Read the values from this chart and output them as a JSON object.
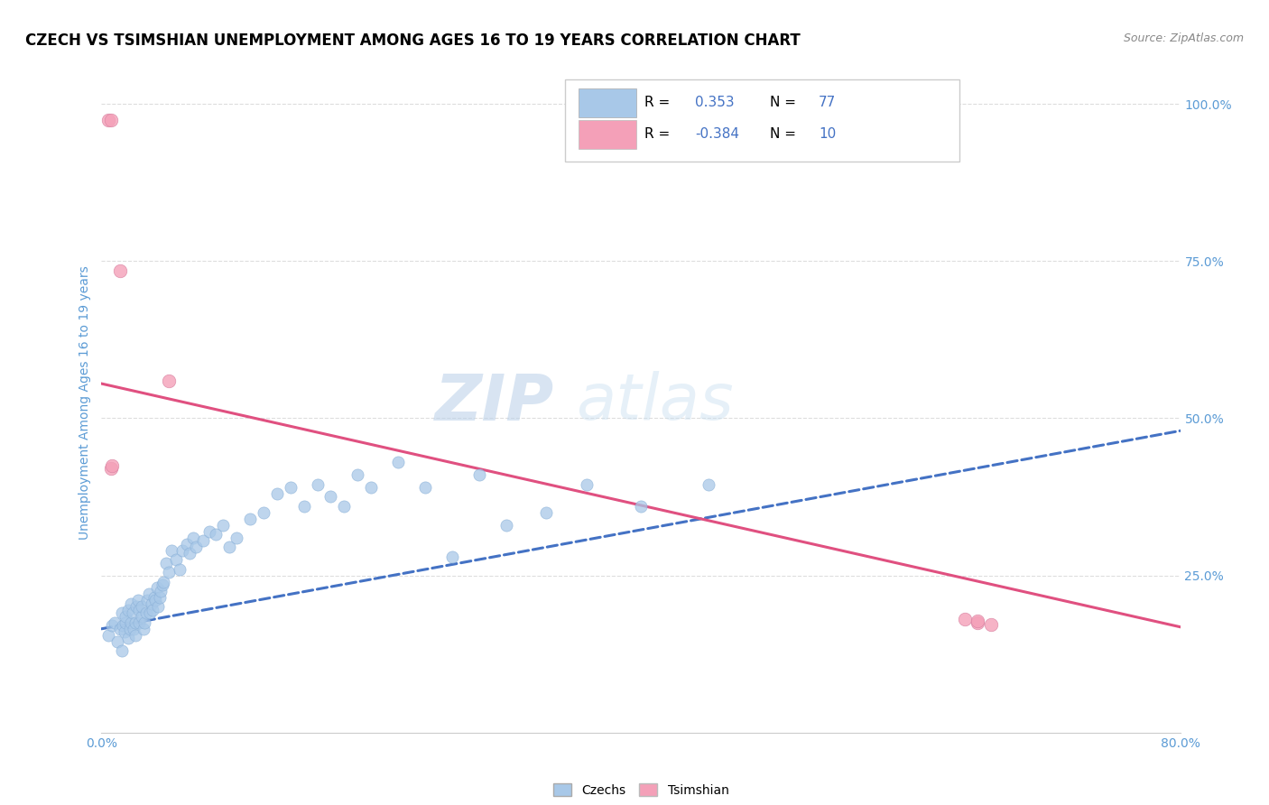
{
  "title": "CZECH VS TSIMSHIAN UNEMPLOYMENT AMONG AGES 16 TO 19 YEARS CORRELATION CHART",
  "source_text": "Source: ZipAtlas.com",
  "ylabel": "Unemployment Among Ages 16 to 19 years",
  "xlim": [
    0.0,
    0.8
  ],
  "ylim": [
    0.0,
    1.05
  ],
  "y_tick_labels": [
    "25.0%",
    "50.0%",
    "75.0%",
    "100.0%"
  ],
  "y_tick_vals": [
    0.25,
    0.5,
    0.75,
    1.0
  ],
  "blue_color": "#a8c8e8",
  "pink_color": "#f4a0b8",
  "blue_line_color": "#4472c4",
  "pink_line_color": "#e05080",
  "watermark_zip": "ZIP",
  "watermark_atlas": "atlas",
  "czechs_x": [
    0.005,
    0.008,
    0.01,
    0.012,
    0.014,
    0.015,
    0.015,
    0.016,
    0.017,
    0.018,
    0.018,
    0.02,
    0.02,
    0.021,
    0.022,
    0.022,
    0.023,
    0.024,
    0.025,
    0.025,
    0.026,
    0.027,
    0.028,
    0.028,
    0.03,
    0.03,
    0.031,
    0.032,
    0.033,
    0.034,
    0.035,
    0.036,
    0.037,
    0.038,
    0.039,
    0.04,
    0.041,
    0.042,
    0.043,
    0.044,
    0.045,
    0.046,
    0.048,
    0.05,
    0.052,
    0.055,
    0.058,
    0.06,
    0.063,
    0.065,
    0.068,
    0.07,
    0.075,
    0.08,
    0.085,
    0.09,
    0.095,
    0.1,
    0.11,
    0.12,
    0.13,
    0.14,
    0.15,
    0.16,
    0.17,
    0.18,
    0.19,
    0.2,
    0.22,
    0.24,
    0.26,
    0.28,
    0.3,
    0.33,
    0.36,
    0.4,
    0.45
  ],
  "czechs_y": [
    0.155,
    0.17,
    0.175,
    0.145,
    0.165,
    0.13,
    0.19,
    0.17,
    0.16,
    0.175,
    0.185,
    0.195,
    0.15,
    0.165,
    0.175,
    0.205,
    0.19,
    0.165,
    0.155,
    0.175,
    0.2,
    0.21,
    0.175,
    0.195,
    0.185,
    0.2,
    0.165,
    0.175,
    0.19,
    0.21,
    0.22,
    0.19,
    0.205,
    0.195,
    0.215,
    0.21,
    0.23,
    0.2,
    0.215,
    0.225,
    0.235,
    0.24,
    0.27,
    0.255,
    0.29,
    0.275,
    0.26,
    0.29,
    0.3,
    0.285,
    0.31,
    0.295,
    0.305,
    0.32,
    0.315,
    0.33,
    0.295,
    0.31,
    0.34,
    0.35,
    0.38,
    0.39,
    0.36,
    0.395,
    0.375,
    0.36,
    0.41,
    0.39,
    0.43,
    0.39,
    0.28,
    0.41,
    0.33,
    0.35,
    0.395,
    0.36,
    0.395
  ],
  "tsimshian_x": [
    0.005,
    0.007,
    0.007,
    0.008,
    0.014,
    0.05,
    0.64,
    0.65,
    0.65,
    0.66
  ],
  "tsimshian_y": [
    0.975,
    0.975,
    0.42,
    0.425,
    0.735,
    0.56,
    0.18,
    0.175,
    0.178,
    0.172
  ],
  "blue_trendline_x": [
    0.0,
    0.8
  ],
  "blue_trendline_y_start": 0.165,
  "blue_trendline_y_end": 0.48,
  "pink_trendline_x": [
    0.0,
    0.8
  ],
  "pink_trendline_y_start": 0.555,
  "pink_trendline_y_end": 0.168
}
